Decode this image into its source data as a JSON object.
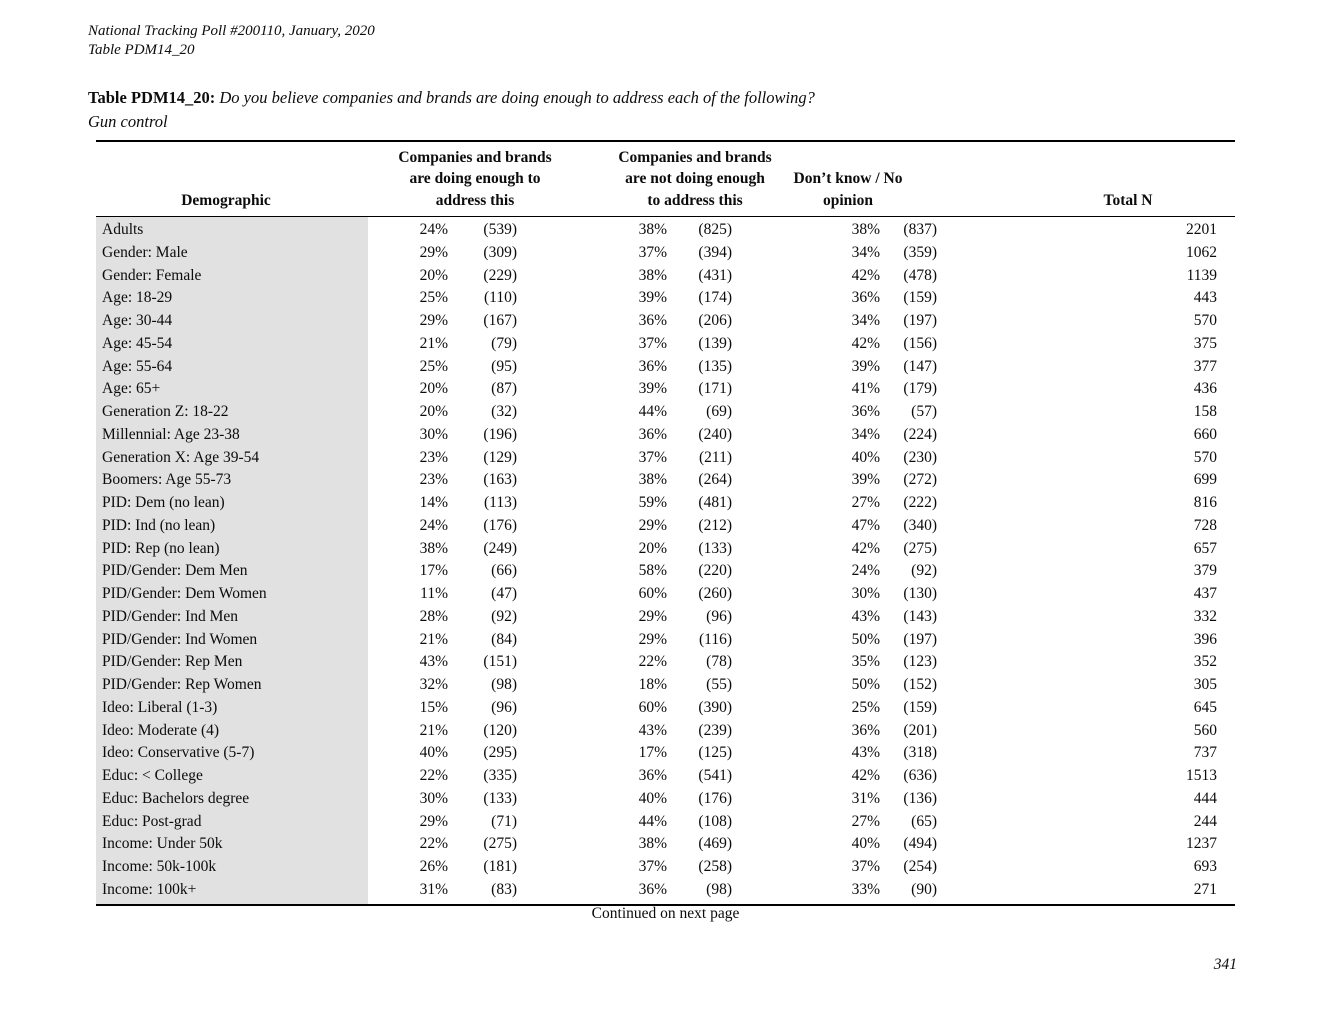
{
  "page": {
    "header_line1": "National Tracking Poll #200110, January, 2020",
    "header_line2": "Table PDM14_20",
    "title_bold": "Table PDM14_20:",
    "title_question": "Do you believe companies and brands are doing enough to address each of the following?",
    "title_topic": "Gun control",
    "footer_note": "Continued on next page",
    "page_number": "341"
  },
  "table": {
    "col_demographic": "Demographic",
    "col_doing": "Companies and brands\nare doing enough to\naddress this",
    "col_not_doing": "Companies and brands\nare not doing enough\nto address this",
    "col_dk": "Don’t know / No\nopinion",
    "col_total": "Total N",
    "rows": [
      {
        "demographic": "Adults",
        "doing_pct": "24%",
        "doing_n": "(539)",
        "not_pct": "38%",
        "not_n": "(825)",
        "dk_pct": "38%",
        "dk_n": "(837)",
        "total": "2201"
      },
      {
        "demographic": "Gender: Male",
        "doing_pct": "29%",
        "doing_n": "(309)",
        "not_pct": "37%",
        "not_n": "(394)",
        "dk_pct": "34%",
        "dk_n": "(359)",
        "total": "1062"
      },
      {
        "demographic": "Gender: Female",
        "doing_pct": "20%",
        "doing_n": "(229)",
        "not_pct": "38%",
        "not_n": "(431)",
        "dk_pct": "42%",
        "dk_n": "(478)",
        "total": "1139"
      },
      {
        "demographic": "Age: 18-29",
        "doing_pct": "25%",
        "doing_n": "(110)",
        "not_pct": "39%",
        "not_n": "(174)",
        "dk_pct": "36%",
        "dk_n": "(159)",
        "total": "443"
      },
      {
        "demographic": "Age: 30-44",
        "doing_pct": "29%",
        "doing_n": "(167)",
        "not_pct": "36%",
        "not_n": "(206)",
        "dk_pct": "34%",
        "dk_n": "(197)",
        "total": "570"
      },
      {
        "demographic": "Age: 45-54",
        "doing_pct": "21%",
        "doing_n": "(79)",
        "not_pct": "37%",
        "not_n": "(139)",
        "dk_pct": "42%",
        "dk_n": "(156)",
        "total": "375"
      },
      {
        "demographic": "Age: 55-64",
        "doing_pct": "25%",
        "doing_n": "(95)",
        "not_pct": "36%",
        "not_n": "(135)",
        "dk_pct": "39%",
        "dk_n": "(147)",
        "total": "377"
      },
      {
        "demographic": "Age: 65+",
        "doing_pct": "20%",
        "doing_n": "(87)",
        "not_pct": "39%",
        "not_n": "(171)",
        "dk_pct": "41%",
        "dk_n": "(179)",
        "total": "436"
      },
      {
        "demographic": "Generation Z: 18-22",
        "doing_pct": "20%",
        "doing_n": "(32)",
        "not_pct": "44%",
        "not_n": "(69)",
        "dk_pct": "36%",
        "dk_n": "(57)",
        "total": "158"
      },
      {
        "demographic": "Millennial: Age 23-38",
        "doing_pct": "30%",
        "doing_n": "(196)",
        "not_pct": "36%",
        "not_n": "(240)",
        "dk_pct": "34%",
        "dk_n": "(224)",
        "total": "660"
      },
      {
        "demographic": "Generation X: Age 39-54",
        "doing_pct": "23%",
        "doing_n": "(129)",
        "not_pct": "37%",
        "not_n": "(211)",
        "dk_pct": "40%",
        "dk_n": "(230)",
        "total": "570"
      },
      {
        "demographic": "Boomers: Age 55-73",
        "doing_pct": "23%",
        "doing_n": "(163)",
        "not_pct": "38%",
        "not_n": "(264)",
        "dk_pct": "39%",
        "dk_n": "(272)",
        "total": "699"
      },
      {
        "demographic": "PID: Dem (no lean)",
        "doing_pct": "14%",
        "doing_n": "(113)",
        "not_pct": "59%",
        "not_n": "(481)",
        "dk_pct": "27%",
        "dk_n": "(222)",
        "total": "816"
      },
      {
        "demographic": "PID: Ind (no lean)",
        "doing_pct": "24%",
        "doing_n": "(176)",
        "not_pct": "29%",
        "not_n": "(212)",
        "dk_pct": "47%",
        "dk_n": "(340)",
        "total": "728"
      },
      {
        "demographic": "PID: Rep (no lean)",
        "doing_pct": "38%",
        "doing_n": "(249)",
        "not_pct": "20%",
        "not_n": "(133)",
        "dk_pct": "42%",
        "dk_n": "(275)",
        "total": "657"
      },
      {
        "demographic": "PID/Gender: Dem Men",
        "doing_pct": "17%",
        "doing_n": "(66)",
        "not_pct": "58%",
        "not_n": "(220)",
        "dk_pct": "24%",
        "dk_n": "(92)",
        "total": "379"
      },
      {
        "demographic": "PID/Gender: Dem Women",
        "doing_pct": "11%",
        "doing_n": "(47)",
        "not_pct": "60%",
        "not_n": "(260)",
        "dk_pct": "30%",
        "dk_n": "(130)",
        "total": "437"
      },
      {
        "demographic": "PID/Gender: Ind Men",
        "doing_pct": "28%",
        "doing_n": "(92)",
        "not_pct": "29%",
        "not_n": "(96)",
        "dk_pct": "43%",
        "dk_n": "(143)",
        "total": "332"
      },
      {
        "demographic": "PID/Gender: Ind Women",
        "doing_pct": "21%",
        "doing_n": "(84)",
        "not_pct": "29%",
        "not_n": "(116)",
        "dk_pct": "50%",
        "dk_n": "(197)",
        "total": "396"
      },
      {
        "demographic": "PID/Gender: Rep Men",
        "doing_pct": "43%",
        "doing_n": "(151)",
        "not_pct": "22%",
        "not_n": "(78)",
        "dk_pct": "35%",
        "dk_n": "(123)",
        "total": "352"
      },
      {
        "demographic": "PID/Gender: Rep Women",
        "doing_pct": "32%",
        "doing_n": "(98)",
        "not_pct": "18%",
        "not_n": "(55)",
        "dk_pct": "50%",
        "dk_n": "(152)",
        "total": "305"
      },
      {
        "demographic": "Ideo: Liberal (1-3)",
        "doing_pct": "15%",
        "doing_n": "(96)",
        "not_pct": "60%",
        "not_n": "(390)",
        "dk_pct": "25%",
        "dk_n": "(159)",
        "total": "645"
      },
      {
        "demographic": "Ideo: Moderate (4)",
        "doing_pct": "21%",
        "doing_n": "(120)",
        "not_pct": "43%",
        "not_n": "(239)",
        "dk_pct": "36%",
        "dk_n": "(201)",
        "total": "560"
      },
      {
        "demographic": "Ideo: Conservative (5-7)",
        "doing_pct": "40%",
        "doing_n": "(295)",
        "not_pct": "17%",
        "not_n": "(125)",
        "dk_pct": "43%",
        "dk_n": "(318)",
        "total": "737"
      },
      {
        "demographic": "Educ: < College",
        "doing_pct": "22%",
        "doing_n": "(335)",
        "not_pct": "36%",
        "not_n": "(541)",
        "dk_pct": "42%",
        "dk_n": "(636)",
        "total": "1513"
      },
      {
        "demographic": "Educ: Bachelors degree",
        "doing_pct": "30%",
        "doing_n": "(133)",
        "not_pct": "40%",
        "not_n": "(176)",
        "dk_pct": "31%",
        "dk_n": "(136)",
        "total": "444"
      },
      {
        "demographic": "Educ: Post-grad",
        "doing_pct": "29%",
        "doing_n": "(71)",
        "not_pct": "44%",
        "not_n": "(108)",
        "dk_pct": "27%",
        "dk_n": "(65)",
        "total": "244"
      },
      {
        "demographic": "Income: Under 50k",
        "doing_pct": "22%",
        "doing_n": "(275)",
        "not_pct": "38%",
        "not_n": "(469)",
        "dk_pct": "40%",
        "dk_n": "(494)",
        "total": "1237"
      },
      {
        "demographic": "Income: 50k-100k",
        "doing_pct": "26%",
        "doing_n": "(181)",
        "not_pct": "37%",
        "not_n": "(258)",
        "dk_pct": "37%",
        "dk_n": "(254)",
        "total": "693"
      },
      {
        "demographic": "Income: 100k+",
        "doing_pct": "31%",
        "doing_n": "(83)",
        "not_pct": "36%",
        "not_n": "(98)",
        "dk_pct": "33%",
        "dk_n": "(90)",
        "total": "271"
      }
    ]
  }
}
